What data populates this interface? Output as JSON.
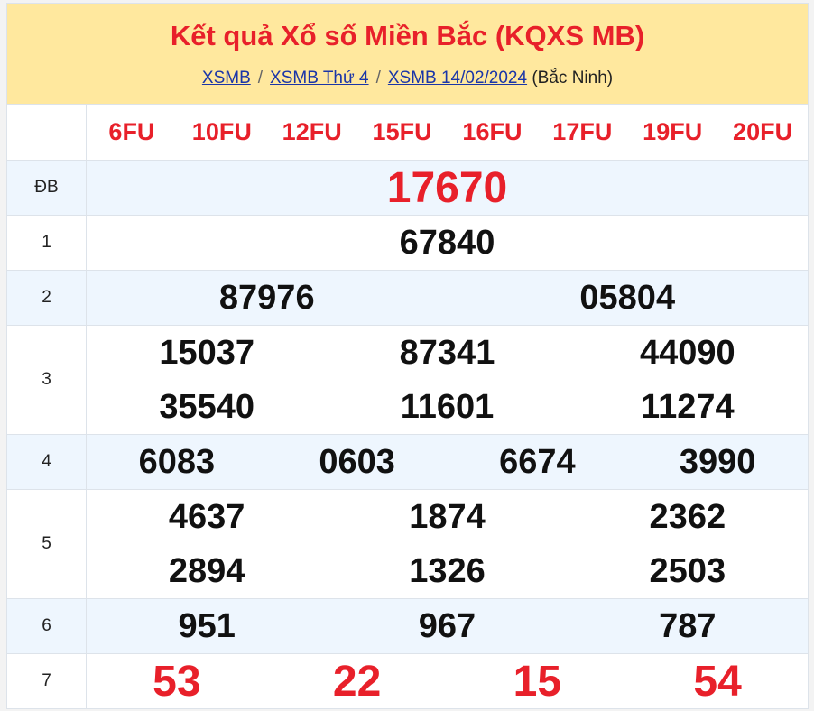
{
  "header": {
    "title": "Kết quả Xổ số Miền Bắc (KQXS MB)",
    "breadcrumbs": [
      {
        "label": "XSMB"
      },
      {
        "label": "XSMB Thứ 4"
      },
      {
        "label": "XSMB 14/02/2024"
      }
    ],
    "separator": "/",
    "location": "(Bắc Ninh)"
  },
  "codes": [
    "6FU",
    "10FU",
    "12FU",
    "15FU",
    "16FU",
    "17FU",
    "19FU",
    "20FU"
  ],
  "prizes": [
    {
      "label": "ĐB",
      "numbers": [
        "17670"
      ]
    },
    {
      "label": "1",
      "numbers": [
        "67840"
      ]
    },
    {
      "label": "2",
      "numbers": [
        "87976",
        "05804"
      ]
    },
    {
      "label": "3",
      "numbers": [
        "15037",
        "87341",
        "44090",
        "35540",
        "11601",
        "11274"
      ]
    },
    {
      "label": "4",
      "numbers": [
        "6083",
        "0603",
        "6674",
        "3990"
      ]
    },
    {
      "label": "5",
      "numbers": [
        "4637",
        "1874",
        "2362",
        "2894",
        "1326",
        "2503"
      ]
    },
    {
      "label": "6",
      "numbers": [
        "951",
        "967",
        "787"
      ]
    },
    {
      "label": "7",
      "numbers": [
        "53",
        "22",
        "15",
        "54"
      ]
    }
  ],
  "colors": {
    "accent": "#e8202a",
    "header_bg": "#ffe89e",
    "alt_row": "#eef6fe",
    "link": "#1a35a8"
  }
}
